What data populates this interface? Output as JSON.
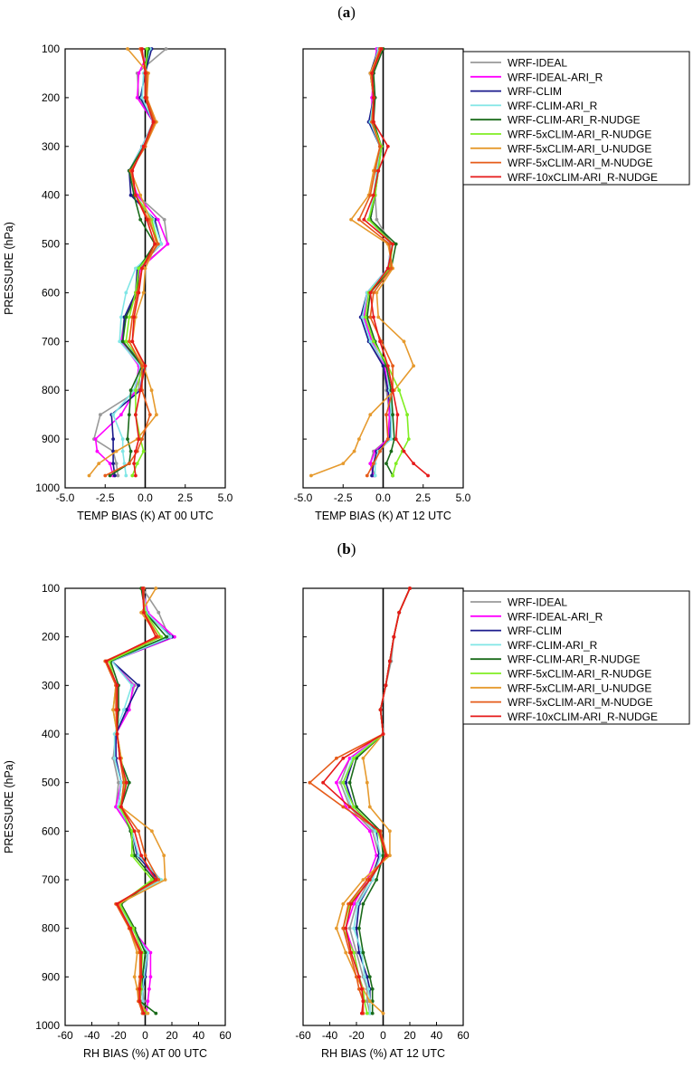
{
  "figure": {
    "panel_a_label": "a",
    "panel_b_label": "b"
  },
  "legend_items": [
    {
      "name": "WRF-IDEAL",
      "color": "#999999"
    },
    {
      "name": "WRF-IDEAL-ARI_R",
      "color": "#ff00ff"
    },
    {
      "name": "WRF-CLIM",
      "color": "#1a1a8c"
    },
    {
      "name": "WRF-CLIM-ARI_R",
      "color": "#80e6e6"
    },
    {
      "name": "WRF-CLIM-ARI_R-NUDGE",
      "color": "#1a6b1a"
    },
    {
      "name": "WRF-5xCLIM-ARI_R-NUDGE",
      "color": "#80ee22"
    },
    {
      "name": "WRF-5xCLIM-ARI_U-NUDGE",
      "color": "#e69a2e"
    },
    {
      "name": "WRF-5xCLIM-ARI_M-NUDGE",
      "color": "#e65c1a"
    },
    {
      "name": "WRF-10xCLIM-ARI_R-NUDGE",
      "color": "#e61a1a"
    }
  ],
  "chart_data": [
    {
      "type": "line",
      "panel": "a",
      "xlabel": "TEMP BIAS (K) AT 00 UTC",
      "ylabel": "PRESSURE (hPa)",
      "xlim": [
        -5,
        5
      ],
      "ylim": [
        1000,
        100
      ],
      "xticks": [
        "-5.0",
        "-2.5",
        "0.0",
        "2.5",
        "5.0"
      ],
      "yticks": [
        "100",
        "200",
        "300",
        "400",
        "500",
        "600",
        "700",
        "800",
        "900",
        "1000"
      ],
      "pressure": [
        100,
        150,
        200,
        250,
        300,
        350,
        400,
        450,
        500,
        550,
        600,
        650,
        700,
        750,
        800,
        850,
        900,
        925,
        950,
        975
      ],
      "series": [
        {
          "name": "WRF-IDEAL",
          "values": [
            1.3,
            -0.5,
            -0.4,
            0.5,
            -0.2,
            -1.0,
            -0.5,
            1.2,
            1.4,
            -0.4,
            -0.5,
            -1.3,
            -1.5,
            -0.3,
            -0.4,
            -2.8,
            -3.2,
            -2.0,
            -1.8,
            -1.7
          ]
        },
        {
          "name": "WRF-IDEAL-ARI_R",
          "values": [
            0.3,
            -0.4,
            -0.5,
            0.5,
            -0.2,
            -1.0,
            -0.5,
            0.8,
            1.4,
            -0.3,
            -0.6,
            -1.2,
            -1.5,
            -0.4,
            -0.6,
            -1.5,
            -3.1,
            -3.0,
            -2.2,
            -2.0
          ]
        },
        {
          "name": "WRF-CLIM",
          "values": [
            0.4,
            0.0,
            -0.3,
            0.5,
            -0.2,
            -1.0,
            -0.9,
            0.6,
            1.0,
            -0.5,
            -0.6,
            -1.3,
            -1.4,
            -0.1,
            -0.3,
            -2.1,
            -2.0,
            -2.0,
            -2.0,
            -1.9
          ]
        },
        {
          "name": "WRF-CLIM-ARI_R",
          "values": [
            0.3,
            -0.1,
            -0.2,
            0.5,
            -0.2,
            -1.0,
            -0.6,
            0.5,
            1.0,
            -0.6,
            -1.2,
            -1.5,
            -1.6,
            -0.3,
            -0.7,
            -2.0,
            -1.4,
            -1.4,
            -1.3,
            -1.2
          ]
        },
        {
          "name": "WRF-CLIM-ARI_R-NUDGE",
          "values": [
            0.2,
            0.0,
            0.0,
            0.6,
            -0.1,
            -1.0,
            -0.7,
            -0.3,
            0.6,
            -0.4,
            -0.5,
            -1.2,
            -1.4,
            -0.2,
            -0.9,
            -1.0,
            -1.1,
            -0.9,
            -1.0,
            -2.2
          ]
        },
        {
          "name": "WRF-5xCLIM-ARI_R-NUDGE",
          "values": [
            0.1,
            0.0,
            0.0,
            0.6,
            0.0,
            -0.9,
            -0.6,
            0.4,
            0.8,
            -0.4,
            -0.6,
            -1.0,
            -1.2,
            -0.1,
            -0.6,
            -0.6,
            -0.3,
            -0.1,
            -0.5,
            -0.8
          ]
        },
        {
          "name": "WRF-5xCLIM-ARI_U-NUDGE",
          "values": [
            -1.1,
            0.2,
            0.1,
            0.7,
            0.0,
            -0.9,
            -0.3,
            0.3,
            0.7,
            0.0,
            -0.1,
            -0.6,
            -0.8,
            -0.1,
            0.4,
            0.7,
            -0.5,
            -1.8,
            -2.9,
            -3.5
          ]
        },
        {
          "name": "WRF-5xCLIM-ARI_M-NUDGE",
          "values": [
            -0.3,
            0.1,
            0.1,
            0.6,
            0.0,
            -0.9,
            -0.6,
            0.2,
            0.8,
            -0.2,
            -0.5,
            -0.8,
            -1.0,
            -0.2,
            -0.2,
            0.3,
            -0.2,
            -0.5,
            -1.0,
            -2.5
          ]
        },
        {
          "name": "WRF-10xCLIM-ARI_R-NUDGE",
          "values": [
            -0.2,
            0.0,
            0.0,
            0.5,
            -0.1,
            -0.8,
            -0.6,
            0.1,
            0.6,
            -0.2,
            -0.4,
            -0.7,
            -0.8,
            0.0,
            -0.3,
            -0.6,
            -0.4,
            -0.6,
            -0.7,
            -0.6
          ]
        }
      ]
    },
    {
      "type": "line",
      "panel": "a",
      "xlabel": "TEMP BIAS (K) AT 12 UTC",
      "ylabel": "",
      "xlim": [
        -5,
        5
      ],
      "ylim": [
        1000,
        100
      ],
      "xticks": [
        "-5.0",
        "-2.5",
        "0.0",
        "2.5",
        "5.0"
      ],
      "yticks": [],
      "pressure": [
        100,
        150,
        200,
        250,
        300,
        350,
        400,
        450,
        500,
        550,
        600,
        650,
        700,
        750,
        800,
        850,
        900,
        925,
        950,
        975
      ],
      "series": [
        {
          "name": "WRF-IDEAL",
          "values": [
            -0.3,
            -0.8,
            -0.6,
            -0.7,
            -0.2,
            -0.4,
            -0.5,
            -0.4,
            0.5,
            0.4,
            -1.0,
            -1.3,
            -0.8,
            0.0,
            0.2,
            0.4,
            0.3,
            -0.6,
            -0.8,
            -0.5
          ]
        },
        {
          "name": "WRF-IDEAL-ARI_R",
          "values": [
            -0.4,
            -0.6,
            -0.7,
            -0.7,
            -0.2,
            -0.4,
            -0.5,
            -0.9,
            0.5,
            0.3,
            -1.0,
            -1.2,
            -0.7,
            0.1,
            0.3,
            0.4,
            0.3,
            -0.5,
            -0.8,
            -0.6
          ]
        },
        {
          "name": "WRF-CLIM",
          "values": [
            -0.3,
            -0.8,
            -0.6,
            -0.9,
            -0.2,
            -0.4,
            -0.5,
            -0.8,
            0.6,
            0.3,
            -1.0,
            -1.4,
            -0.9,
            0.0,
            0.3,
            0.5,
            0.4,
            -0.4,
            -0.6,
            -0.7
          ]
        },
        {
          "name": "WRF-CLIM-ARI_R",
          "values": [
            -0.3,
            -0.7,
            -0.6,
            -0.8,
            -0.2,
            -0.4,
            -0.6,
            -0.9,
            0.5,
            0.3,
            -1.0,
            -1.3,
            -0.8,
            0.2,
            0.4,
            0.5,
            0.5,
            -0.3,
            -0.5,
            -0.5
          ]
        },
        {
          "name": "WRF-CLIM-ARI_R-NUDGE",
          "values": [
            0.0,
            -0.6,
            -0.5,
            -0.6,
            -0.1,
            -0.3,
            -0.5,
            -0.8,
            0.8,
            0.5,
            -0.8,
            -1.0,
            -0.5,
            0.2,
            0.5,
            0.6,
            0.7,
            0.5,
            0.2,
            0.6
          ]
        },
        {
          "name": "WRF-5xCLIM-ARI_R-NUDGE",
          "values": [
            -0.1,
            -0.7,
            -0.6,
            -0.7,
            -0.1,
            -0.3,
            -0.5,
            -0.9,
            0.6,
            0.4,
            -0.9,
            -1.1,
            -0.6,
            0.3,
            1.0,
            1.5,
            1.6,
            1.2,
            0.8,
            0.6
          ]
        },
        {
          "name": "WRF-5xCLIM-ARI_U-NUDGE",
          "values": [
            -0.2,
            -0.8,
            -0.6,
            -0.7,
            -0.2,
            -0.6,
            -0.9,
            -2.0,
            0.3,
            0.6,
            -0.4,
            -0.3,
            1.3,
            1.9,
            0.7,
            -0.8,
            -1.5,
            -1.8,
            -2.5,
            -4.5
          ]
        },
        {
          "name": "WRF-5xCLIM-ARI_M-NUDGE",
          "values": [
            -0.2,
            -0.7,
            -0.6,
            -0.7,
            -0.2,
            -0.5,
            -0.8,
            -1.5,
            0.4,
            0.5,
            -0.6,
            -0.8,
            -0.1,
            0.6,
            0.6,
            0.2,
            0.3,
            -0.2,
            -0.6,
            -1.0
          ]
        },
        {
          "name": "WRF-10xCLIM-ARI_R-NUDGE",
          "values": [
            -0.1,
            -0.7,
            -0.6,
            -0.6,
            0.3,
            -0.3,
            -0.6,
            -1.2,
            0.6,
            0.3,
            -0.8,
            -0.6,
            -0.2,
            0.3,
            0.6,
            0.9,
            0.8,
            1.3,
            1.9,
            2.8
          ]
        }
      ]
    },
    {
      "type": "line",
      "panel": "b",
      "xlabel": "RH BIAS (%) AT 00 UTC",
      "ylabel": "PRESSURE (hPa)",
      "xlim": [
        -60,
        60
      ],
      "ylim": [
        1000,
        100
      ],
      "xticks": [
        "-60",
        "-40",
        "-20",
        "0",
        "20",
        "40",
        "60"
      ],
      "yticks": [
        "100",
        "200",
        "300",
        "400",
        "500",
        "600",
        "700",
        "800",
        "900",
        "1000"
      ],
      "pressure": [
        100,
        150,
        200,
        250,
        300,
        350,
        400,
        450,
        500,
        550,
        600,
        650,
        700,
        750,
        800,
        850,
        900,
        925,
        950,
        975
      ],
      "series": [
        {
          "name": "WRF-IDEAL",
          "values": [
            -2,
            10,
            18,
            -25,
            -8,
            -13,
            -22,
            -24,
            -20,
            -22,
            -10,
            -5,
            8,
            -20,
            -10,
            2,
            -3,
            -2,
            -1,
            -2
          ]
        },
        {
          "name": "WRF-IDEAL-ARI_R",
          "values": [
            -2,
            2,
            22,
            -25,
            -9,
            -12,
            -22,
            -22,
            -18,
            -22,
            -10,
            -5,
            8,
            -20,
            -10,
            4,
            4,
            3,
            2,
            1
          ]
        },
        {
          "name": "WRF-CLIM",
          "values": [
            -1,
            0,
            20,
            -25,
            -5,
            -14,
            -22,
            -22,
            -18,
            -20,
            -10,
            -6,
            10,
            -20,
            -10,
            2,
            0,
            -2,
            -2,
            -2
          ]
        },
        {
          "name": "WRF-CLIM-ARI_R",
          "values": [
            -2,
            1,
            19,
            -25,
            -10,
            -16,
            -23,
            -23,
            -18,
            -20,
            -10,
            -5,
            12,
            -20,
            -10,
            2,
            -1,
            -2,
            -2,
            -2
          ]
        },
        {
          "name": "WRF-CLIM-ARI_R-NUDGE",
          "values": [
            -3,
            0,
            16,
            -26,
            -20,
            -20,
            -21,
            -19,
            -12,
            -18,
            -11,
            -8,
            7,
            -18,
            -8,
            0,
            -2,
            -3,
            -4,
            8
          ]
        },
        {
          "name": "WRF-5xCLIM-ARI_R-NUDGE",
          "values": [
            -2,
            0,
            12,
            -27,
            -22,
            -24,
            -21,
            -18,
            -15,
            -19,
            -10,
            -10,
            5,
            -19,
            -9,
            -2,
            -3,
            -3,
            -4,
            0
          ]
        },
        {
          "name": "WRF-5xCLIM-ARI_U-NUDGE",
          "values": [
            8,
            -3,
            10,
            -30,
            -22,
            -24,
            -21,
            -18,
            -16,
            -18,
            5,
            14,
            15,
            -20,
            -12,
            -6,
            -8,
            -6,
            -5,
            2
          ]
        },
        {
          "name": "WRF-5xCLIM-ARI_M-NUDGE",
          "values": [
            -1,
            -1,
            10,
            -30,
            -22,
            -22,
            -21,
            -19,
            -16,
            -18,
            -5,
            0,
            10,
            -22,
            -12,
            -4,
            -4,
            -5,
            -5,
            -2
          ]
        },
        {
          "name": "WRF-10xCLIM-ARI_R-NUDGE",
          "values": [
            -2,
            -1,
            8,
            -29,
            -21,
            -21,
            -21,
            -19,
            -14,
            -18,
            -8,
            -3,
            8,
            -21,
            -11,
            -3,
            -3,
            -4,
            -4,
            -1
          ]
        }
      ]
    },
    {
      "type": "line",
      "panel": "b",
      "xlabel": "RH BIAS (%) AT 12 UTC",
      "ylabel": "",
      "xlim": [
        -60,
        60
      ],
      "ylim": [
        1000,
        100
      ],
      "xticks": [
        "-60",
        "-40",
        "-20",
        "0",
        "20",
        "40",
        "60"
      ],
      "yticks": [],
      "pressure": [
        100,
        150,
        200,
        250,
        300,
        350,
        400,
        450,
        500,
        550,
        600,
        650,
        700,
        750,
        800,
        850,
        900,
        925,
        950,
        975
      ],
      "series": [
        {
          "name": "WRF-IDEAL",
          "values": [
            20,
            12,
            8,
            6,
            2,
            -2,
            0,
            -25,
            -32,
            -25,
            -8,
            -3,
            -10,
            -20,
            -25,
            -20,
            -15,
            -12,
            -12,
            -10
          ]
        },
        {
          "name": "WRF-IDEAL-ARI_R",
          "values": [
            20,
            12,
            8,
            5,
            2,
            -2,
            0,
            -25,
            -35,
            -28,
            -10,
            -5,
            -12,
            -22,
            -28,
            -22,
            -18,
            -15,
            -15,
            -15
          ]
        },
        {
          "name": "WRF-CLIM",
          "values": [
            20,
            12,
            8,
            5,
            2,
            -2,
            0,
            -22,
            -28,
            -22,
            -5,
            -3,
            -8,
            -18,
            -20,
            -18,
            -12,
            -10,
            -10,
            -10
          ]
        },
        {
          "name": "WRF-CLIM-ARI_R",
          "values": [
            20,
            12,
            8,
            5,
            2,
            -2,
            0,
            -23,
            -30,
            -24,
            -6,
            -2,
            -8,
            -19,
            -22,
            -16,
            -14,
            -11,
            -10,
            -10
          ]
        },
        {
          "name": "WRF-CLIM-ARI_R-NUDGE",
          "values": [
            20,
            12,
            8,
            5,
            2,
            -2,
            0,
            -20,
            -25,
            -20,
            -2,
            0,
            -5,
            -15,
            -18,
            -15,
            -10,
            -8,
            -8,
            -8
          ]
        },
        {
          "name": "WRF-5xCLIM-ARI_R-NUDGE",
          "values": [
            20,
            12,
            8,
            5,
            2,
            -2,
            0,
            -22,
            -30,
            -22,
            -4,
            2,
            -10,
            -25,
            -30,
            -22,
            -18,
            -15,
            -14,
            -12
          ]
        },
        {
          "name": "WRF-5xCLIM-ARI_U-NUDGE",
          "values": [
            20,
            12,
            8,
            5,
            2,
            -2,
            0,
            -15,
            -12,
            -10,
            5,
            5,
            -15,
            -30,
            -35,
            -28,
            -20,
            -15,
            -10,
            0
          ]
        },
        {
          "name": "WRF-5xCLIM-ARI_M-NUDGE",
          "values": [
            20,
            12,
            8,
            5,
            2,
            -2,
            0,
            -35,
            -55,
            -30,
            -2,
            3,
            -12,
            -26,
            -30,
            -25,
            -20,
            -18,
            -15,
            -15
          ]
        },
        {
          "name": "WRF-10xCLIM-ARI_R-NUDGE",
          "values": [
            20,
            12,
            8,
            5,
            2,
            -2,
            0,
            -30,
            -45,
            -25,
            -3,
            2,
            -10,
            -24,
            -28,
            -24,
            -18,
            -16,
            -15,
            -16
          ]
        }
      ]
    }
  ]
}
